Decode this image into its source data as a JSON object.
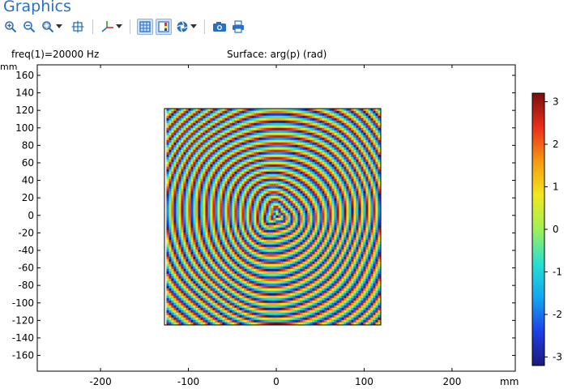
{
  "window": {
    "title": "Graphics"
  },
  "toolbar": {
    "buttons": [
      {
        "name": "zoom-in",
        "icon": "zoom-in-icon"
      },
      {
        "name": "zoom-out",
        "icon": "zoom-out-icon"
      },
      {
        "name": "zoom-box",
        "icon": "zoom-box-icon"
      },
      {
        "name": "zoom-extents",
        "icon": "zoom-extents-icon"
      },
      {
        "name": "axis-orientation",
        "icon": "axis-orientation-icon"
      },
      {
        "name": "grid-toggle",
        "icon": "grid-icon",
        "active": true
      },
      {
        "name": "legend-toggle",
        "icon": "legend-icon",
        "active": true
      },
      {
        "name": "scene-light",
        "icon": "scene-light-icon"
      },
      {
        "name": "image-snapshot",
        "icon": "camera-icon"
      },
      {
        "name": "print",
        "icon": "print-icon"
      }
    ],
    "accent": "#2a6fc7"
  },
  "plot": {
    "parameter_label": "freq(1)=20000 Hz",
    "title": "Surface: arg(p) (rad)",
    "y_unit": "mm",
    "x_unit": "mm"
  },
  "chart_data": {
    "type": "heatmap",
    "title": "Surface: arg(p) (rad)",
    "xlabel": "mm",
    "ylabel": "mm",
    "xlim": [
      -272,
      272
    ],
    "ylim": [
      -178,
      172
    ],
    "x_ticks": [
      -200,
      -100,
      0,
      100,
      200
    ],
    "y_ticks": [
      160,
      140,
      120,
      100,
      80,
      60,
      40,
      20,
      0,
      -20,
      -40,
      -60,
      -80,
      -100,
      -120,
      -140,
      -160
    ],
    "x_tick_labels": [
      "-200",
      "-100",
      "0",
      "100",
      "200"
    ],
    "y_tick_labels": [
      "160",
      "140",
      "120",
      "100",
      "80",
      "60",
      "40",
      "20",
      "0",
      "-20",
      "-40",
      "-60",
      "-80",
      "-100",
      "-120",
      "-140",
      "-160"
    ],
    "domain": {
      "x": [
        -125,
        125
      ],
      "y": [
        -125,
        125
      ]
    },
    "pattern": "concentric wrapped phase rings around the center, approx. 9 mm ring spacing, with dislocations",
    "colorbar": {
      "range": [
        -3.2,
        3.2
      ],
      "ticks": [
        3,
        2,
        1,
        0,
        -1,
        -2,
        -3
      ],
      "tick_labels": [
        "3",
        "2",
        "1",
        "0",
        "-1",
        "-2",
        "-3"
      ],
      "colormap": "rainbow",
      "colors": [
        "#1a1a7a",
        "#1f3fe6",
        "#14a6f0",
        "#27e0d0",
        "#9ff05a",
        "#f0e81e",
        "#f59a12",
        "#e8301a",
        "#7a0d0d"
      ]
    },
    "grid": false,
    "legend": "right"
  }
}
